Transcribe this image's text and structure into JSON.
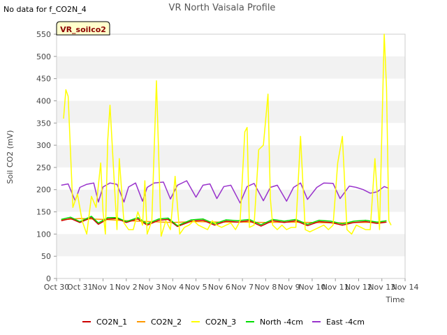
{
  "nodata_note": "No data for f_CO2N_4",
  "chart_data": {
    "type": "line",
    "title": "VR North Vaisala Profile",
    "badge": "VR_soilco2",
    "xlabel": "Time",
    "ylabel": "Soil CO2 (mV)",
    "ylim": [
      0,
      550
    ],
    "yticks": [
      0,
      50,
      100,
      150,
      200,
      250,
      300,
      350,
      400,
      450,
      500,
      550
    ],
    "xlim": [
      0,
      15
    ],
    "xticks": [
      0,
      1,
      2,
      3,
      4,
      5,
      6,
      7,
      8,
      9,
      10,
      11,
      12,
      13,
      14,
      15
    ],
    "xtick_labels": [
      "Oct 30",
      "Oct 31",
      "Nov 1",
      "Nov 2",
      "Nov 3",
      "Nov 4",
      "Nov 5",
      "Nov 6",
      "Nov 7",
      "Nov 8",
      "Nov 9",
      "Nov 10",
      "Nov 11",
      "Nov 12",
      "Nov 13",
      "Nov 14"
    ],
    "grid": "horizontal bands",
    "legend_position": "bottom",
    "colors": {
      "band": "#f2f2f2",
      "badge_bg": "#ffffcc",
      "badge_text": "#8b0000"
    },
    "series": [
      {
        "name": "CO2N_1",
        "color": "#cc0000",
        "x": [
          0.2,
          0.6,
          1.0,
          1.5,
          1.8,
          2.2,
          2.6,
          3.0,
          3.5,
          3.9,
          4.4,
          4.8,
          5.2,
          5.8,
          6.3,
          6.8,
          7.3,
          7.8,
          8.3,
          8.8,
          9.3,
          9.8,
          10.3,
          10.8,
          11.3,
          11.8,
          12.3,
          12.8,
          13.3,
          13.8,
          14.2
        ],
        "y": [
          130,
          135,
          126,
          137,
          122,
          134,
          135,
          126,
          134,
          120,
          131,
          133,
          117,
          129,
          131,
          120,
          129,
          127,
          130,
          118,
          130,
          126,
          130,
          119,
          128,
          126,
          120,
          126,
          128,
          124,
          127
        ]
      },
      {
        "name": "CO2N_2",
        "color": "#ff9900",
        "x": [
          0.2,
          1.0,
          2.0,
          3.0,
          4.0,
          5.0,
          6.0,
          7.0,
          8.0,
          9.0,
          10.0,
          11.0,
          12.0,
          13.0,
          14.2
        ],
        "y": [
          132,
          135,
          133,
          130,
          128,
          126,
          128,
          127,
          127,
          126,
          127,
          126,
          125,
          126,
          127
        ]
      },
      {
        "name": "CO2N_3",
        "color": "#ffff00",
        "x": [
          0.3,
          0.4,
          0.5,
          0.7,
          0.9,
          1.1,
          1.3,
          1.5,
          1.7,
          1.9,
          2.0,
          2.1,
          2.2,
          2.3,
          2.5,
          2.6,
          2.7,
          2.9,
          3.1,
          3.3,
          3.5,
          3.7,
          3.8,
          3.9,
          4.1,
          4.3,
          4.5,
          4.7,
          4.9,
          5.1,
          5.3,
          5.5,
          5.7,
          5.9,
          6.1,
          6.3,
          6.5,
          6.7,
          6.9,
          7.1,
          7.3,
          7.5,
          7.7,
          7.9,
          8.1,
          8.2,
          8.3,
          8.5,
          8.7,
          8.9,
          9.1,
          9.2,
          9.3,
          9.5,
          9.7,
          9.9,
          10.1,
          10.3,
          10.5,
          10.7,
          10.9,
          11.1,
          11.3,
          11.5,
          11.7,
          11.9,
          12.1,
          12.3,
          12.5,
          12.7,
          12.9,
          13.1,
          13.3,
          13.5,
          13.7,
          13.9,
          14.1,
          14.2,
          14.3,
          14.4
        ],
        "y": [
          360,
          425,
          410,
          160,
          190,
          130,
          100,
          185,
          160,
          260,
          150,
          100,
          310,
          390,
          200,
          110,
          270,
          125,
          110,
          110,
          150,
          120,
          220,
          100,
          130,
          445,
          95,
          130,
          110,
          230,
          100,
          115,
          120,
          130,
          120,
          115,
          110,
          130,
          120,
          115,
          120,
          125,
          110,
          130,
          330,
          340,
          115,
          120,
          290,
          300,
          415,
          180,
          120,
          110,
          120,
          110,
          115,
          115,
          320,
          110,
          105,
          110,
          115,
          120,
          110,
          120,
          260,
          320,
          110,
          100,
          120,
          115,
          110,
          110,
          270,
          110,
          550,
          430,
          130,
          120
        ]
      },
      {
        "name": "North -4cm",
        "color": "#00dd00",
        "x": [
          0.2,
          0.6,
          1.0,
          1.5,
          1.8,
          2.2,
          2.6,
          3.0,
          3.5,
          3.9,
          4.4,
          4.8,
          5.2,
          5.8,
          6.3,
          6.8,
          7.3,
          7.8,
          8.3,
          8.8,
          9.3,
          9.8,
          10.3,
          10.8,
          11.3,
          11.8,
          12.3,
          12.8,
          13.3,
          13.8,
          14.2
        ],
        "y": [
          133,
          138,
          128,
          140,
          125,
          137,
          137,
          128,
          137,
          123,
          134,
          136,
          119,
          132,
          134,
          123,
          132,
          130,
          133,
          121,
          133,
          129,
          133,
          122,
          131,
          129,
          123,
          129,
          131,
          127,
          130
        ]
      },
      {
        "name": "East -4cm",
        "color": "#9933cc",
        "x": [
          0.2,
          0.5,
          0.8,
          1.0,
          1.3,
          1.6,
          1.8,
          2.0,
          2.3,
          2.6,
          2.9,
          3.1,
          3.4,
          3.7,
          3.9,
          4.2,
          4.6,
          4.9,
          5.2,
          5.6,
          6.0,
          6.3,
          6.6,
          6.9,
          7.2,
          7.5,
          7.9,
          8.2,
          8.5,
          8.9,
          9.2,
          9.5,
          9.9,
          10.2,
          10.5,
          10.8,
          11.2,
          11.5,
          11.9,
          12.2,
          12.6,
          12.9,
          13.2,
          13.5,
          13.8,
          14.1,
          14.3
        ],
        "y": [
          210,
          213,
          175,
          205,
          212,
          215,
          172,
          206,
          215,
          212,
          172,
          206,
          215,
          174,
          205,
          215,
          217,
          179,
          210,
          220,
          183,
          210,
          213,
          180,
          207,
          210,
          170,
          207,
          214,
          175,
          205,
          210,
          174,
          205,
          215,
          178,
          205,
          215,
          214,
          180,
          208,
          205,
          200,
          192,
          195,
          207,
          203
        ]
      }
    ]
  }
}
